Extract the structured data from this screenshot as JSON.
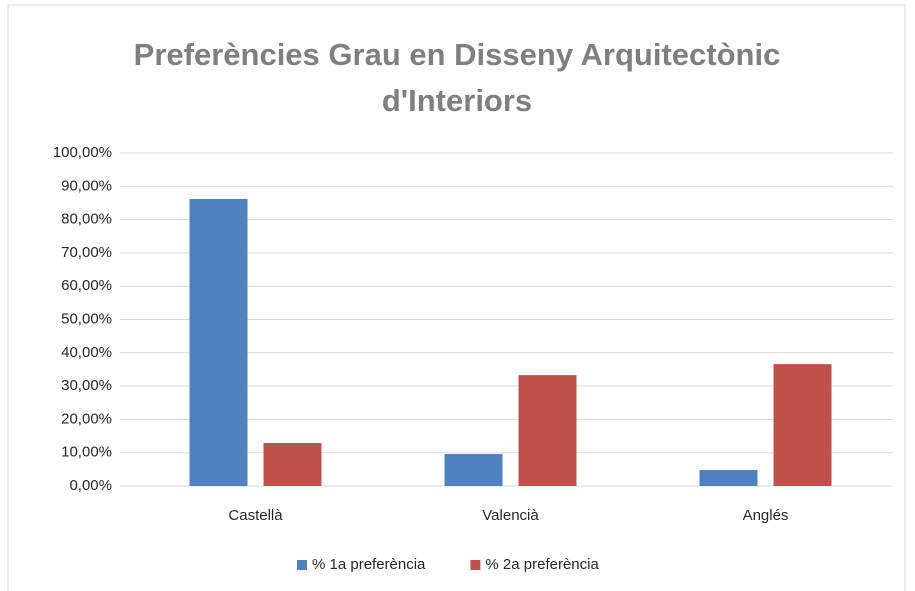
{
  "chart_data": {
    "type": "bar",
    "title": "Preferències Grau en Disseny Arquitectònic d'Interiors",
    "categories": [
      "Castellà",
      "Valencià",
      "Anglés"
    ],
    "series": [
      {
        "name": "% 1a preferència",
        "color": "#4f81bd",
        "values": [
          86.2,
          9.6,
          4.8
        ]
      },
      {
        "name": "% 2a preferència",
        "color": "#c0504d",
        "values": [
          12.9,
          33.3,
          36.6
        ]
      }
    ],
    "ylim": [
      0,
      100
    ],
    "yticks": [
      {
        "value": 0,
        "label": "0,00%"
      },
      {
        "value": 10,
        "label": "10,00%"
      },
      {
        "value": 20,
        "label": "20,00%"
      },
      {
        "value": 30,
        "label": "30,00%"
      },
      {
        "value": 40,
        "label": "40,00%"
      },
      {
        "value": 50,
        "label": "50,00%"
      },
      {
        "value": 60,
        "label": "60,00%"
      },
      {
        "value": 70,
        "label": "70,00%"
      },
      {
        "value": 80,
        "label": "80,00%"
      },
      {
        "value": 90,
        "label": "90,00%"
      },
      {
        "value": 100,
        "label": "100,00%"
      }
    ],
    "grid": true,
    "legend": "bottom"
  }
}
